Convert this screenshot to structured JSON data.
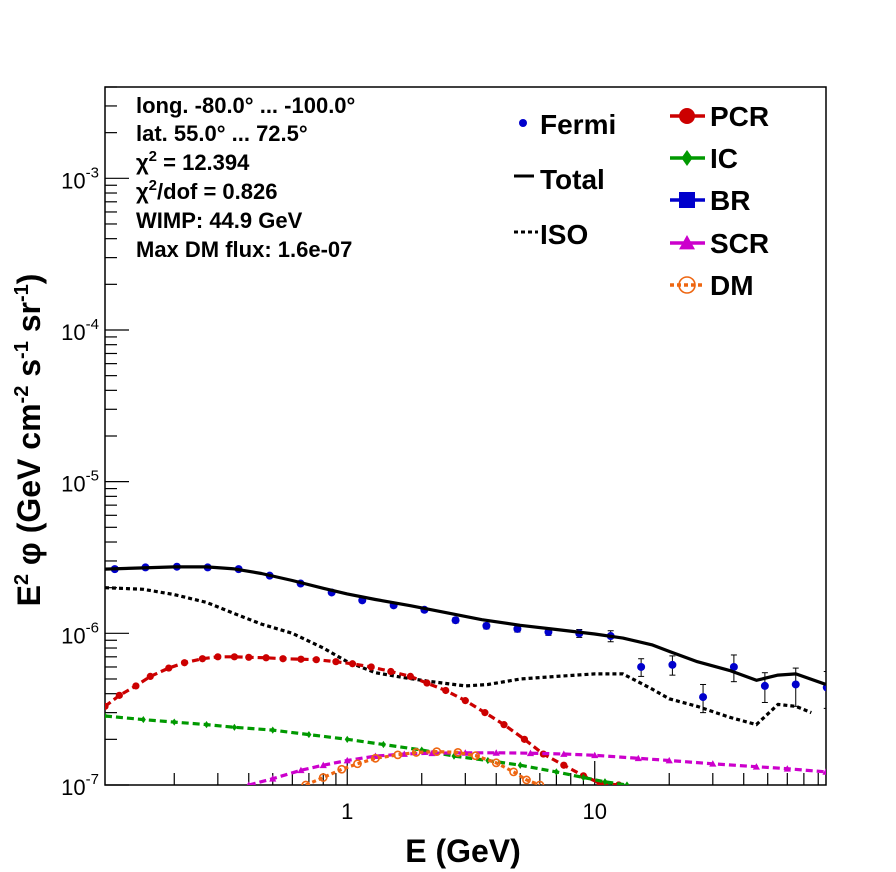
{
  "chart_data": {
    "type": "scatter",
    "xlabel": "E (GeV)",
    "ylabel": "E² φ (GeV cm⁻² s⁻¹ sr⁻¹)",
    "ylabel_parts": {
      "e": "E",
      "sq": "2",
      "phi": " φ (GeV cm",
      "m2": "-2",
      "s": " s",
      "m1a": "-1",
      "sr": " sr",
      "m1b": "-1",
      "close": ")"
    },
    "xscale": "log",
    "yscale": "log",
    "xlim": [
      0.105,
      86
    ],
    "ylim": [
      1e-07,
      0.004
    ],
    "x_tick_labels": [
      {
        "value": 1,
        "label": "1"
      },
      {
        "value": 10,
        "label": "10"
      }
    ],
    "y_tick_labels": [
      {
        "value": 1e-07,
        "base": "10",
        "exp": "-7"
      },
      {
        "value": 1e-06,
        "base": "10",
        "exp": "-6"
      },
      {
        "value": 1e-05,
        "base": "10",
        "exp": "-5"
      },
      {
        "value": 0.0001,
        "base": "10",
        "exp": "-4"
      },
      {
        "value": 0.001,
        "base": "10",
        "exp": "-3"
      }
    ],
    "info": {
      "long": "long. -80.0° ... -100.0°",
      "lat": "lat. 55.0° ... 72.5°",
      "chi_chi": "χ",
      "chi_sup": "2",
      "chi_val": " = 12.394",
      "chidof_chi": "χ",
      "chidof_sup": "2",
      "chidof_val": "/dof = 0.826",
      "wimp": "WIMP: 44.9 GeV",
      "maxdm": "Max DM flux: 1.6e-07"
    },
    "legend_position": "top-right",
    "legend_left": [
      {
        "label": "Fermi",
        "style": "point",
        "color": "#0000cc"
      },
      {
        "label": "Total",
        "style": "solid",
        "color": "#000000"
      },
      {
        "label": "ISO",
        "style": "dotted",
        "color": "#000000"
      }
    ],
    "legend_right": [
      {
        "label": "PCR",
        "style": "dashed-marker",
        "marker": "circle",
        "color": "#cc0000"
      },
      {
        "label": "IC",
        "style": "dashed-marker",
        "marker": "diamond",
        "color": "#009900"
      },
      {
        "label": "BR",
        "style": "dashed-marker",
        "marker": "square",
        "color": "#0000cc"
      },
      {
        "label": "SCR",
        "style": "dashed-marker",
        "marker": "triangle",
        "color": "#cc00cc"
      },
      {
        "label": "DM",
        "style": "dotted-marker",
        "marker": "open-circle",
        "color": "#ee6611"
      }
    ],
    "series": [
      {
        "name": "Fermi",
        "style": "points-errorbars",
        "color": "#0000cc",
        "x": [
          0.115,
          0.153,
          0.205,
          0.273,
          0.364,
          0.486,
          0.648,
          0.865,
          1.15,
          1.54,
          2.05,
          2.74,
          3.65,
          4.87,
          6.5,
          8.66,
          11.6,
          15.4,
          20.6,
          27.4,
          36.5,
          48.7,
          64.9,
          86.6
        ],
        "y": [
          2.65e-06,
          2.72e-06,
          2.75e-06,
          2.72e-06,
          2.65e-06,
          2.4e-06,
          2.13e-06,
          1.86e-06,
          1.65e-06,
          1.53e-06,
          1.43e-06,
          1.22e-06,
          1.12e-06,
          1.07e-06,
          1.02e-06,
          1e-06,
          9.6e-07,
          6e-07,
          6.2e-07,
          3.8e-07,
          6e-07,
          4.5e-07,
          4.6e-07,
          4.4e-07
        ],
        "yerr": [
          9e-08,
          7e-08,
          7e-08,
          7e-08,
          6e-08,
          6e-08,
          6e-08,
          5e-08,
          5e-08,
          5e-08,
          5e-08,
          5e-08,
          5e-08,
          5e-08,
          5e-08,
          6e-08,
          8e-08,
          8e-08,
          9e-08,
          8e-08,
          1.2e-07,
          1e-07,
          1.3e-07,
          1.2e-07
        ]
      },
      {
        "name": "Total",
        "style": "solid",
        "color": "#000000",
        "x": [
          0.105,
          0.15,
          0.2,
          0.27,
          0.35,
          0.45,
          0.6,
          0.8,
          1.0,
          1.3,
          1.8,
          2.5,
          3.5,
          5,
          7,
          10,
          13,
          17,
          20,
          26,
          35,
          45,
          55,
          65,
          86
        ],
        "y": [
          2.65e-06,
          2.7e-06,
          2.74e-06,
          2.74e-06,
          2.66e-06,
          2.48e-06,
          2.23e-06,
          1.98e-06,
          1.82e-06,
          1.67e-06,
          1.52e-06,
          1.37e-06,
          1.23e-06,
          1.13e-06,
          1.06e-06,
          9.9e-07,
          9.3e-07,
          8.4e-07,
          7.6e-07,
          6.5e-07,
          5.7e-07,
          4.9e-07,
          5.3e-07,
          5.4e-07,
          4.6e-07
        ]
      },
      {
        "name": "ISO",
        "style": "dotted",
        "color": "#000000",
        "x": [
          0.105,
          0.15,
          0.2,
          0.27,
          0.35,
          0.45,
          0.6,
          0.8,
          1.0,
          1.3,
          1.7,
          2.2,
          3.0,
          3.7,
          5,
          7,
          10,
          13,
          17,
          20,
          26,
          35,
          45,
          55,
          65,
          75
        ],
        "y": [
          2e-06,
          1.95e-06,
          1.8e-06,
          1.6e-06,
          1.35e-06,
          1.15e-06,
          1e-06,
          8e-07,
          6.5e-07,
          5.5e-07,
          5.1e-07,
          4.8e-07,
          4.5e-07,
          4.6e-07,
          5e-07,
          5.2e-07,
          5.4e-07,
          5.4e-07,
          4.3e-07,
          3.7e-07,
          3.3e-07,
          2.8e-07,
          2.5e-07,
          3.4e-07,
          3.3e-07,
          3e-07
        ]
      },
      {
        "name": "PCR",
        "style": "dashed-marker",
        "marker": "circle",
        "color": "#cc0000",
        "x": [
          0.105,
          0.12,
          0.14,
          0.16,
          0.19,
          0.22,
          0.26,
          0.3,
          0.35,
          0.4,
          0.47,
          0.55,
          0.65,
          0.75,
          0.9,
          1.05,
          1.25,
          1.5,
          1.8,
          2.1,
          2.5,
          3.0,
          3.6,
          4.3,
          5.2,
          6.2,
          7.5,
          9,
          10.5,
          12.5
        ],
        "y": [
          3.3e-07,
          3.9e-07,
          4.5e-07,
          5.2e-07,
          5.9e-07,
          6.4e-07,
          6.8e-07,
          7e-07,
          7e-07,
          6.95e-07,
          6.9e-07,
          6.8e-07,
          6.75e-07,
          6.7e-07,
          6.5e-07,
          6.3e-07,
          6e-07,
          5.6e-07,
          5.2e-07,
          4.7e-07,
          4.2e-07,
          3.6e-07,
          3e-07,
          2.5e-07,
          2e-07,
          1.6e-07,
          1.35e-07,
          1.15e-07,
          1.03e-07,
          1e-07
        ]
      },
      {
        "name": "IC",
        "style": "dashed-marker",
        "marker": "diamond",
        "color": "#009900",
        "x": [
          0.105,
          0.15,
          0.2,
          0.27,
          0.35,
          0.5,
          0.7,
          1.0,
          1.4,
          2.0,
          2.7,
          3.7,
          5,
          7,
          9,
          11,
          13.5
        ],
        "y": [
          2.85e-07,
          2.7e-07,
          2.6e-07,
          2.5e-07,
          2.4e-07,
          2.3e-07,
          2.15e-07,
          2e-07,
          1.85e-07,
          1.7e-07,
          1.55e-07,
          1.45e-07,
          1.35e-07,
          1.22e-07,
          1.12e-07,
          1.05e-07,
          1e-07
        ]
      },
      {
        "name": "SCR",
        "style": "dashed-marker",
        "marker": "triangle",
        "color": "#cc00cc",
        "x": [
          0.4,
          0.5,
          0.65,
          0.8,
          1.0,
          1.3,
          1.7,
          2.2,
          3.0,
          4.0,
          5.5,
          7.5,
          10,
          15,
          20,
          30,
          45,
          60,
          86
        ],
        "y": [
          1e-07,
          1.1e-07,
          1.25e-07,
          1.35e-07,
          1.45e-07,
          1.55e-07,
          1.6e-07,
          1.62e-07,
          1.63e-07,
          1.63e-07,
          1.62e-07,
          1.6e-07,
          1.57e-07,
          1.5e-07,
          1.45e-07,
          1.38e-07,
          1.32e-07,
          1.28e-07,
          1.22e-07
        ]
      },
      {
        "name": "DM",
        "style": "dotted-marker",
        "marker": "open-circle",
        "color": "#ee6611",
        "x": [
          0.68,
          0.8,
          0.95,
          1.1,
          1.3,
          1.6,
          1.9,
          2.3,
          2.8,
          3.3,
          4.0,
          4.7,
          5.3,
          6.0
        ],
        "y": [
          1e-07,
          1.12e-07,
          1.27e-07,
          1.38e-07,
          1.5e-07,
          1.58e-07,
          1.64e-07,
          1.66e-07,
          1.64e-07,
          1.56e-07,
          1.4e-07,
          1.22e-07,
          1.08e-07,
          1e-07
        ]
      }
    ]
  }
}
